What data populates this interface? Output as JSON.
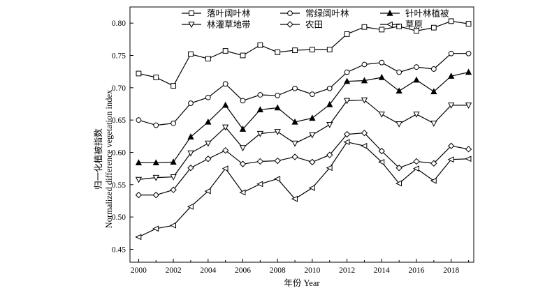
{
  "chart_data": {
    "type": "line",
    "x": [
      2000,
      2001,
      2002,
      2003,
      2004,
      2005,
      2006,
      2007,
      2008,
      2009,
      2010,
      2011,
      2012,
      2013,
      2014,
      2015,
      2016,
      2017,
      2018,
      2019
    ],
    "series": [
      {
        "name": "落叶阔叶林",
        "marker": "square",
        "values": [
          0.722,
          0.716,
          0.703,
          0.752,
          0.745,
          0.757,
          0.75,
          0.766,
          0.755,
          0.758,
          0.759,
          0.759,
          0.783,
          0.794,
          0.79,
          0.795,
          0.788,
          0.793,
          0.803,
          0.799
        ]
      },
      {
        "name": "常绿阔叶林",
        "marker": "circle",
        "values": [
          0.65,
          0.642,
          0.645,
          0.676,
          0.685,
          0.706,
          0.68,
          0.689,
          0.688,
          0.699,
          0.69,
          0.699,
          0.724,
          0.736,
          0.739,
          0.724,
          0.732,
          0.729,
          0.753,
          0.753
        ]
      },
      {
        "name": "针叶林植被",
        "marker": "triangle-up",
        "values": [
          0.584,
          0.584,
          0.585,
          0.624,
          0.647,
          0.673,
          0.636,
          0.666,
          0.669,
          0.647,
          0.653,
          0.674,
          0.71,
          0.711,
          0.716,
          0.695,
          0.712,
          0.694,
          0.718,
          0.724
        ]
      },
      {
        "name": "林灌草地带",
        "marker": "triangle-down",
        "values": [
          0.558,
          0.561,
          0.562,
          0.599,
          0.614,
          0.639,
          0.607,
          0.629,
          0.632,
          0.614,
          0.627,
          0.643,
          0.68,
          0.681,
          0.659,
          0.644,
          0.659,
          0.645,
          0.673,
          0.673
        ]
      },
      {
        "name": "农田",
        "marker": "diamond",
        "values": [
          0.534,
          0.534,
          0.542,
          0.576,
          0.59,
          0.603,
          0.582,
          0.586,
          0.587,
          0.593,
          0.585,
          0.596,
          0.628,
          0.63,
          0.602,
          0.576,
          0.586,
          0.583,
          0.61,
          0.605
        ]
      },
      {
        "name": "草原",
        "marker": "triangle-left",
        "values": [
          0.469,
          0.482,
          0.487,
          0.516,
          0.54,
          0.575,
          0.538,
          0.551,
          0.559,
          0.528,
          0.545,
          0.576,
          0.616,
          0.61,
          0.585,
          0.552,
          0.575,
          0.556,
          0.589,
          0.59
        ]
      }
    ],
    "xlabel": "年份 Year",
    "ylabel_lines": [
      "归一化植被指数",
      "Normalized difference vegetation index"
    ],
    "xlim": [
      1999.5,
      2019.3
    ],
    "ylim": [
      0.43,
      0.825
    ],
    "xticks": [
      2000,
      2002,
      2004,
      2006,
      2008,
      2010,
      2012,
      2014,
      2016,
      2018
    ],
    "xtick_labels": [
      "2000",
      "2002",
      "2004",
      "2006",
      "2008",
      "2010",
      "2012",
      "2014",
      "2016",
      "2018"
    ],
    "yticks": [
      0.45,
      0.5,
      0.55,
      0.6,
      0.65,
      0.7,
      0.75,
      0.8
    ],
    "ytick_labels": [
      "0.45",
      "0.50",
      "0.55",
      "0.60",
      "0.65",
      "0.70",
      "0.75",
      "0.80"
    ],
    "grid": false,
    "legend_position": "top",
    "line_color": "#000000"
  }
}
